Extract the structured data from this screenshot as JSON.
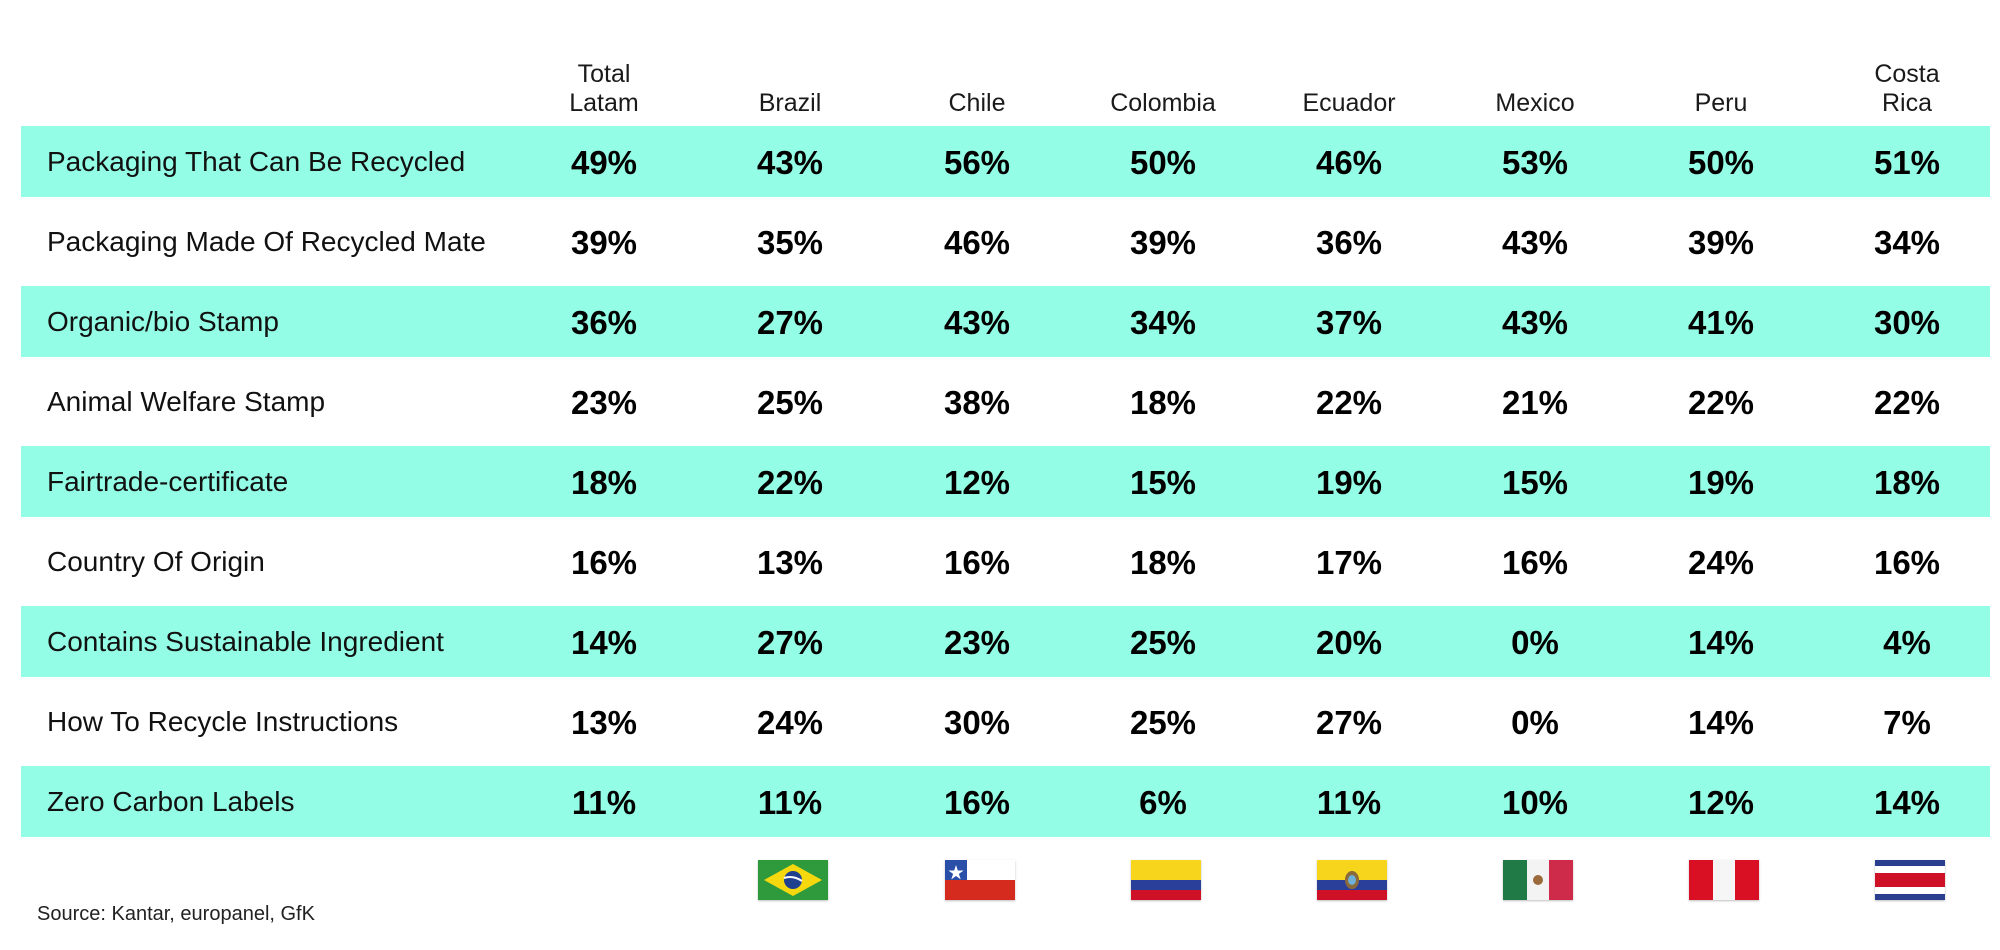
{
  "chart_data": {
    "type": "table",
    "title": "",
    "columns": [
      "Total\nLatam",
      "Brazil",
      "Chile",
      "Colombia",
      "Ecuador",
      "Mexico",
      "Peru",
      "Costa\nRica"
    ],
    "rows": [
      {
        "label": "Packaging That Can Be Recycled",
        "values": [
          "49%",
          "43%",
          "56%",
          "50%",
          "46%",
          "53%",
          "50%",
          "51%"
        ]
      },
      {
        "label": "Packaging Made Of Recycled Mate",
        "values": [
          "39%",
          "35%",
          "46%",
          "39%",
          "36%",
          "43%",
          "39%",
          "34%"
        ]
      },
      {
        "label": "Organic/bio Stamp",
        "values": [
          "36%",
          "27%",
          "43%",
          "34%",
          "37%",
          "43%",
          "41%",
          "30%"
        ]
      },
      {
        "label": "Animal Welfare Stamp",
        "values": [
          "23%",
          "25%",
          "38%",
          "18%",
          "22%",
          "21%",
          "22%",
          "22%"
        ]
      },
      {
        "label": "Fairtrade-certificate",
        "values": [
          "18%",
          "22%",
          "12%",
          "15%",
          "19%",
          "15%",
          "19%",
          "18%"
        ]
      },
      {
        "label": "Country Of Origin",
        "values": [
          "16%",
          "13%",
          "16%",
          "18%",
          "17%",
          "16%",
          "24%",
          "16%"
        ]
      },
      {
        "label": "Contains Sustainable Ingredient",
        "values": [
          "14%",
          "27%",
          "23%",
          "25%",
          "20%",
          "0%",
          "14%",
          "4%"
        ]
      },
      {
        "label": "How To Recycle Instructions",
        "values": [
          "13%",
          "24%",
          "30%",
          "25%",
          "27%",
          "0%",
          "14%",
          "7%"
        ]
      },
      {
        "label": "Zero Carbon Labels",
        "values": [
          "11%",
          "11%",
          "16%",
          "6%",
          "11%",
          "10%",
          "12%",
          "14%"
        ]
      }
    ],
    "shaded_rows": [
      0,
      2,
      4,
      6,
      8
    ],
    "row_fill_color": "#93fde5",
    "flags": [
      "",
      "brazil-flag-icon",
      "chile-flag-icon",
      "colombia-flag-icon",
      "ecuador-flag-icon",
      "mexico-flag-icon",
      "peru-flag-icon",
      "costa-rica-flag-icon"
    ]
  },
  "source": "Source: Kantar, europanel, GfK"
}
